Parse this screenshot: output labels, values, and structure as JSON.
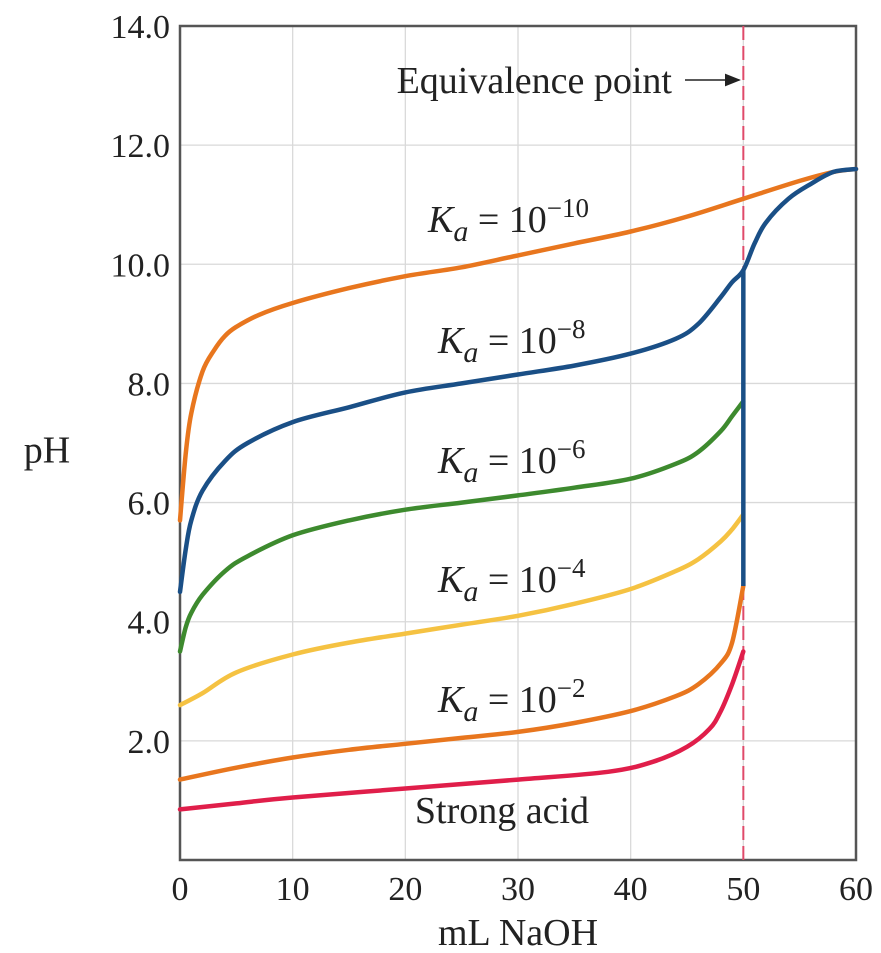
{
  "chart_data": {
    "type": "line",
    "xlabel": "mL NaOH",
    "ylabel": "pH",
    "xlim": [
      0,
      60
    ],
    "ylim": [
      0,
      14
    ],
    "grid": true,
    "x_ticks": [
      {
        "value": 0,
        "label": "0"
      },
      {
        "value": 10,
        "label": "10"
      },
      {
        "value": 20,
        "label": "20"
      },
      {
        "value": 30,
        "label": "30"
      },
      {
        "value": 40,
        "label": "40"
      },
      {
        "value": 50,
        "label": "50",
        "color": "#d6204a"
      },
      {
        "value": 60,
        "label": "60"
      }
    ],
    "y_ticks": [
      {
        "value": 2,
        "label": "2.0"
      },
      {
        "value": 4,
        "label": "4.0"
      },
      {
        "value": 6,
        "label": "6.0"
      },
      {
        "value": 8,
        "label": "8.0"
      },
      {
        "value": 10,
        "label": "10.0"
      },
      {
        "value": 12,
        "label": "12.0"
      },
      {
        "value": 14,
        "label": "14.0"
      }
    ],
    "equivalence_point": {
      "x": 50,
      "label": "Equivalence point",
      "color": "#e04a6a"
    },
    "series": [
      {
        "label": "K_a = 10^−10",
        "base": "K",
        "sub": "a",
        "eq": " = 10",
        "exp": "−10",
        "color": "#e8761e",
        "points": [
          [
            0,
            5.7
          ],
          [
            0.5,
            6.8
          ],
          [
            1,
            7.5
          ],
          [
            2,
            8.2
          ],
          [
            3,
            8.55
          ],
          [
            4,
            8.8
          ],
          [
            5,
            8.95
          ],
          [
            7,
            9.15
          ],
          [
            10,
            9.35
          ],
          [
            15,
            9.6
          ],
          [
            20,
            9.8
          ],
          [
            25,
            9.95
          ],
          [
            30,
            10.15
          ],
          [
            35,
            10.35
          ],
          [
            40,
            10.55
          ],
          [
            45,
            10.8
          ],
          [
            50,
            11.1
          ],
          [
            55,
            11.4
          ],
          [
            58,
            11.55
          ],
          [
            60,
            11.6
          ]
        ]
      },
      {
        "label": "K_a = 10^−8",
        "base": "K",
        "sub": "a",
        "eq": " = 10",
        "exp": "−8",
        "color": "#1a4f86",
        "points": [
          [
            0,
            4.5
          ],
          [
            0.5,
            5.2
          ],
          [
            1,
            5.7
          ],
          [
            2,
            6.2
          ],
          [
            4,
            6.7
          ],
          [
            6,
            7.0
          ],
          [
            10,
            7.35
          ],
          [
            15,
            7.6
          ],
          [
            20,
            7.85
          ],
          [
            25,
            8.0
          ],
          [
            30,
            8.15
          ],
          [
            35,
            8.3
          ],
          [
            40,
            8.5
          ],
          [
            44,
            8.75
          ],
          [
            46,
            9.0
          ],
          [
            48,
            9.45
          ],
          [
            49,
            9.7
          ],
          [
            50,
            9.9
          ],
          [
            51,
            10.35
          ],
          [
            52,
            10.7
          ],
          [
            54,
            11.1
          ],
          [
            56,
            11.35
          ],
          [
            58,
            11.55
          ],
          [
            60,
            11.6
          ]
        ]
      },
      {
        "label": "K_a = 10^−6",
        "base": "K",
        "sub": "a",
        "eq": " = 10",
        "exp": "−6",
        "color": "#3d8a2e",
        "points": [
          [
            0,
            3.5
          ],
          [
            0.5,
            3.9
          ],
          [
            1,
            4.15
          ],
          [
            2,
            4.45
          ],
          [
            4,
            4.85
          ],
          [
            6,
            5.1
          ],
          [
            10,
            5.45
          ],
          [
            15,
            5.7
          ],
          [
            20,
            5.88
          ],
          [
            25,
            6.0
          ],
          [
            30,
            6.12
          ],
          [
            35,
            6.25
          ],
          [
            40,
            6.4
          ],
          [
            44,
            6.65
          ],
          [
            46,
            6.85
          ],
          [
            48,
            7.2
          ],
          [
            49,
            7.45
          ],
          [
            50,
            7.7
          ]
        ]
      },
      {
        "label": "K_a = 10^−4",
        "base": "K",
        "sub": "a",
        "eq": " = 10",
        "exp": "−4",
        "color": "#f5c242",
        "points": [
          [
            0,
            2.6
          ],
          [
            2,
            2.8
          ],
          [
            5,
            3.15
          ],
          [
            10,
            3.45
          ],
          [
            15,
            3.65
          ],
          [
            20,
            3.8
          ],
          [
            25,
            3.95
          ],
          [
            30,
            4.1
          ],
          [
            35,
            4.3
          ],
          [
            40,
            4.55
          ],
          [
            44,
            4.85
          ],
          [
            46,
            5.05
          ],
          [
            48,
            5.35
          ],
          [
            49,
            5.55
          ],
          [
            50,
            5.8
          ]
        ]
      },
      {
        "label": "K_a = 10^−2",
        "base": "K",
        "sub": "a",
        "eq": " = 10",
        "exp": "−2",
        "color": "#e8761e",
        "points": [
          [
            0,
            1.35
          ],
          [
            5,
            1.55
          ],
          [
            10,
            1.72
          ],
          [
            15,
            1.85
          ],
          [
            20,
            1.95
          ],
          [
            25,
            2.05
          ],
          [
            30,
            2.15
          ],
          [
            35,
            2.3
          ],
          [
            40,
            2.5
          ],
          [
            44,
            2.75
          ],
          [
            46,
            2.95
          ],
          [
            48,
            3.3
          ],
          [
            49,
            3.65
          ],
          [
            50,
            4.6
          ]
        ]
      },
      {
        "label": "Strong acid",
        "color": "#e01e4a",
        "points": [
          [
            0,
            0.85
          ],
          [
            5,
            0.95
          ],
          [
            10,
            1.05
          ],
          [
            20,
            1.2
          ],
          [
            30,
            1.35
          ],
          [
            38,
            1.48
          ],
          [
            42,
            1.65
          ],
          [
            45,
            1.9
          ],
          [
            47,
            2.2
          ],
          [
            48,
            2.5
          ],
          [
            49,
            2.95
          ],
          [
            50,
            3.5
          ]
        ]
      }
    ],
    "vertical_jump": {
      "x": 50,
      "from": 4.6,
      "to": 9.9,
      "color": "#1a4f86"
    }
  }
}
